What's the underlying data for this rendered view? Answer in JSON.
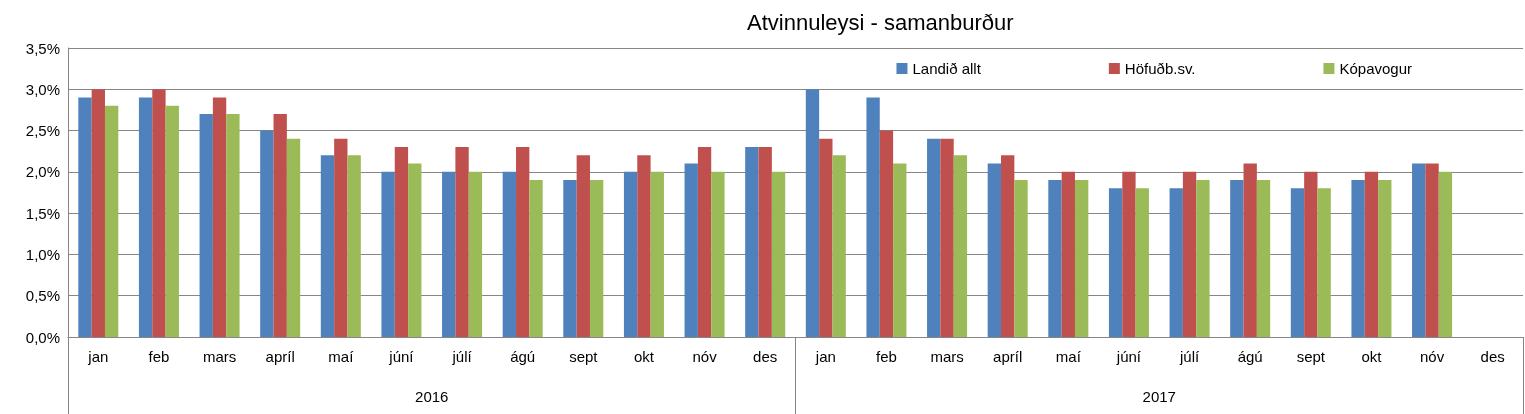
{
  "chart_data": {
    "type": "bar",
    "title": "Atvinnuleysi - samanburður",
    "categories": [
      "jan",
      "feb",
      "mars",
      "apríl",
      "maí",
      "júní",
      "júlí",
      "ágú",
      "sept",
      "okt",
      "nóv",
      "des",
      "jan",
      "feb",
      "mars",
      "apríl",
      "maí",
      "júní",
      "júlí",
      "ágú",
      "sept",
      "okt",
      "nóv",
      "des"
    ],
    "series": [
      {
        "name": "Landið allt",
        "color": "#4f81bd",
        "values": [
          2.9,
          2.9,
          2.7,
          2.5,
          2.2,
          2.0,
          2.0,
          2.0,
          1.9,
          2.0,
          2.1,
          2.3,
          3.0,
          2.9,
          2.4,
          2.1,
          1.9,
          1.8,
          1.8,
          1.9,
          1.8,
          1.9,
          2.1,
          null
        ]
      },
      {
        "name": "Höfuðb.sv.",
        "color": "#c0504d",
        "values": [
          3.0,
          3.0,
          2.9,
          2.7,
          2.4,
          2.3,
          2.3,
          2.3,
          2.2,
          2.2,
          2.3,
          2.3,
          2.4,
          2.5,
          2.4,
          2.2,
          2.0,
          2.0,
          2.0,
          2.1,
          2.0,
          2.0,
          2.1,
          null
        ]
      },
      {
        "name": "Kópavogur",
        "color": "#9bbb59",
        "values": [
          2.8,
          2.8,
          2.7,
          2.4,
          2.2,
          2.1,
          2.0,
          1.9,
          1.9,
          2.0,
          2.0,
          2.0,
          2.2,
          2.1,
          2.2,
          1.9,
          1.9,
          1.8,
          1.9,
          1.9,
          1.8,
          1.9,
          2.0,
          null
        ]
      }
    ],
    "annotations": [
      "2016",
      "2017"
    ],
    "ylim": [
      0,
      3.5
    ],
    "yticks": [
      {
        "value": 0,
        "label": "0,0%"
      },
      {
        "value": 0.5,
        "label": "0,5%"
      },
      {
        "value": 1,
        "label": "1,0%"
      },
      {
        "value": 1.5,
        "label": "1,5%"
      },
      {
        "value": 2,
        "label": "2,0%"
      },
      {
        "value": 2.5,
        "label": "2,5%"
      },
      {
        "value": 3,
        "label": "3,0%"
      },
      {
        "value": 3.5,
        "label": "3,5%"
      }
    ],
    "grid": "y",
    "legend": "top right"
  }
}
